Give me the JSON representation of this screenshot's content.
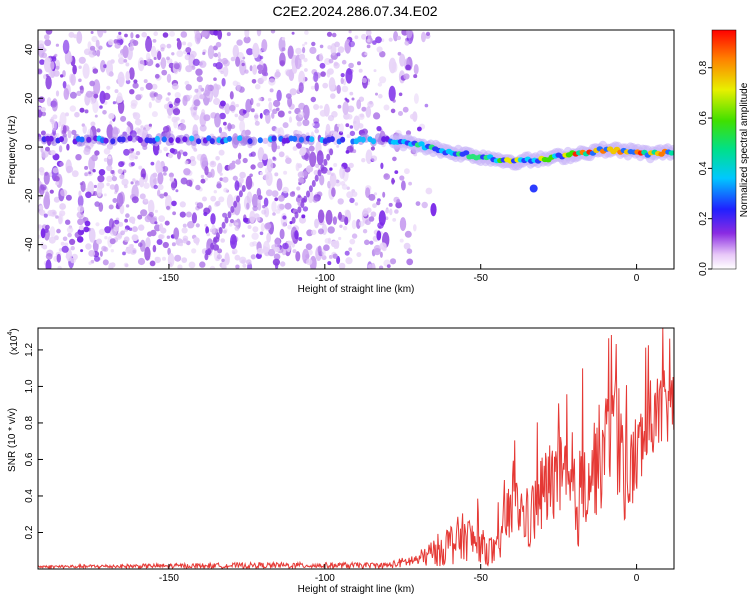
{
  "page_title": "C2E2.2024.286.07.34.E02",
  "chart_data": [
    {
      "type": "heatmap",
      "xlabel": "Height of straight line (km)",
      "ylabel": "Frequency (Hz)",
      "xlim": [
        -192,
        12
      ],
      "ylim": [
        -50,
        48
      ],
      "x_ticks": [
        -150,
        -100,
        -50,
        0
      ],
      "y_ticks": [
        -40,
        -20,
        0,
        20,
        40
      ],
      "noise_region_x": [
        -192,
        -78
      ],
      "ridge": [
        {
          "x": -192,
          "y": 3
        },
        {
          "x": -150,
          "y": 3
        },
        {
          "x": -120,
          "y": 3
        },
        {
          "x": -100,
          "y": 3
        },
        {
          "x": -80,
          "y": 3
        },
        {
          "x": -70,
          "y": 1
        },
        {
          "x": -60,
          "y": -2
        },
        {
          "x": -50,
          "y": -4
        },
        {
          "x": -45,
          "y": -5
        },
        {
          "x": -40,
          "y": -6
        },
        {
          "x": -30,
          "y": -5
        },
        {
          "x": -20,
          "y": -3
        },
        {
          "x": -10,
          "y": -1
        },
        {
          "x": 0,
          "y": -2
        },
        {
          "x": 5,
          "y": -3
        },
        {
          "x": 10,
          "y": -2
        }
      ],
      "colorbar": {
        "label": "Normalized spectral amplitude",
        "range": [
          0,
          0.95
        ],
        "ticks": [
          0.0,
          0.2,
          0.4,
          0.6,
          0.8
        ]
      }
    },
    {
      "type": "line",
      "xlabel": "Height of straight line (km)",
      "ylabel": "SNR (10 * v/v)",
      "y_multiplier": "(x10",
      "y_multiplier_exp": "4",
      "xlim": [
        -192,
        12
      ],
      "ylim": [
        0,
        1.32
      ],
      "x_ticks": [
        -150,
        -100,
        -50,
        0
      ],
      "y_ticks": [
        0.2,
        0.4,
        0.6,
        0.8,
        1.0,
        1.2
      ],
      "series": [
        {
          "color": "#e53935",
          "envelope": [
            {
              "x": -192,
              "base": 0.01,
              "amp": 0.01
            },
            {
              "x": -120,
              "base": 0.015,
              "amp": 0.02
            },
            {
              "x": -80,
              "base": 0.015,
              "amp": 0.02
            },
            {
              "x": -70,
              "base": 0.04,
              "amp": 0.05
            },
            {
              "x": -60,
              "base": 0.1,
              "amp": 0.15
            },
            {
              "x": -55,
              "base": 0.14,
              "amp": 0.17
            },
            {
              "x": -50,
              "base": 0.1,
              "amp": 0.12
            },
            {
              "x": -45,
              "base": 0.06,
              "amp": 0.1
            },
            {
              "x": -42,
              "base": 0.22,
              "amp": 0.22
            },
            {
              "x": -38,
              "base": 0.3,
              "amp": 0.2
            },
            {
              "x": -35,
              "base": 0.2,
              "amp": 0.2
            },
            {
              "x": -30,
              "base": 0.35,
              "amp": 0.3
            },
            {
              "x": -25,
              "base": 0.45,
              "amp": 0.3
            },
            {
              "x": -20,
              "base": 0.25,
              "amp": 0.35
            },
            {
              "x": -15,
              "base": 0.45,
              "amp": 0.35
            },
            {
              "x": -10,
              "base": 0.55,
              "amp": 0.4
            },
            {
              "x": -7,
              "base": 0.7,
              "amp": 0.45
            },
            {
              "x": -3,
              "base": 0.4,
              "amp": 0.35
            },
            {
              "x": 0,
              "base": 0.55,
              "amp": 0.3
            },
            {
              "x": 5,
              "base": 0.75,
              "amp": 0.3
            },
            {
              "x": 12,
              "base": 0.85,
              "amp": 0.25
            }
          ]
        }
      ]
    }
  ]
}
